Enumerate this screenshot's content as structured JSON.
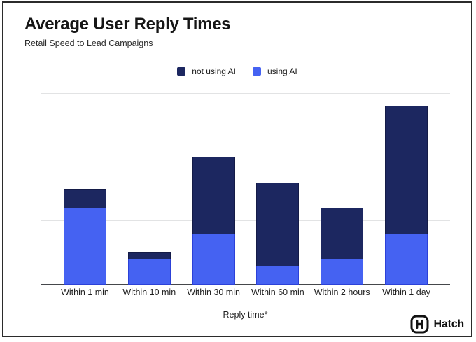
{
  "chart_data": {
    "type": "bar",
    "stacked": true,
    "title": "Average User Reply Times",
    "subtitle": "Retail Speed to Lead Campaigns",
    "categories": [
      "Within 1 min",
      "Within 10 min",
      "Within 30 min",
      "Within 60 min",
      "Within 2 hours",
      "Within 1 day"
    ],
    "series": [
      {
        "name": "not using AI",
        "color": "#1c2760",
        "border": "#141b47",
        "values": [
          3,
          1,
          12,
          13,
          8,
          20
        ]
      },
      {
        "name": "using AI",
        "color": "#4562f2",
        "border": "#2c41d8",
        "values": [
          12,
          4,
          8,
          3,
          4,
          8
        ]
      }
    ],
    "stack_totals": [
      15,
      5,
      20,
      16,
      12,
      28
    ],
    "xlabel": "Reply time*",
    "ylim": [
      0,
      30
    ],
    "gridline_values": [
      10,
      20,
      30
    ],
    "y_axis_labels_visible": false,
    "legend_position": "top-center",
    "gridline_color": "#e2e3e4",
    "axis_color": "#45474b"
  },
  "branding": {
    "logo_text": "Hatch"
  }
}
